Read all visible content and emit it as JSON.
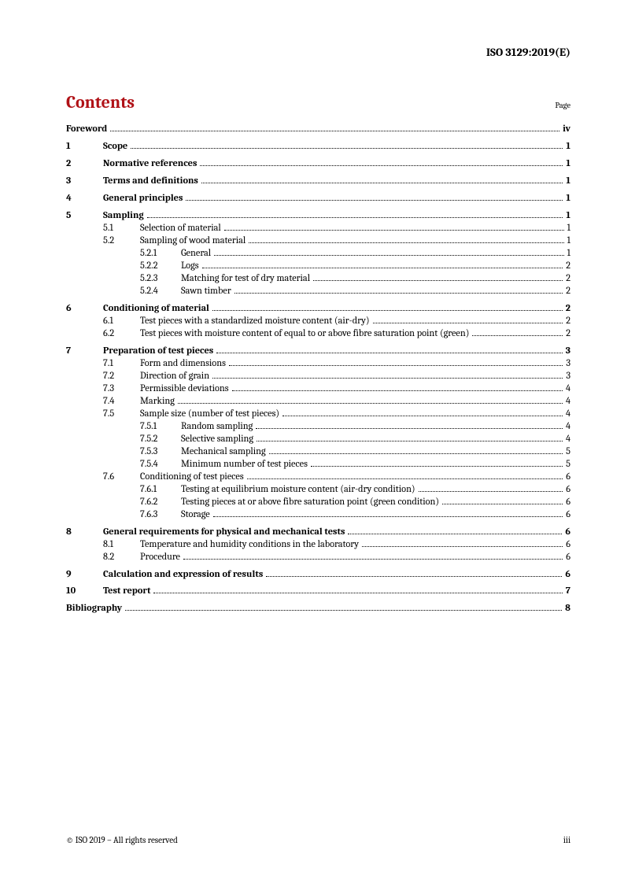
{
  "header": {
    "doc_id": "ISO 3129:2019(E)"
  },
  "contents": {
    "title": "Contents",
    "page_label": "Page"
  },
  "footer": {
    "copyright": "© ISO 2019 – All rights reserved",
    "page_number": "iii"
  },
  "toc": [
    {
      "level": 0,
      "num": "",
      "title": "Foreword",
      "page": "iv",
      "bold": true,
      "gap_after": true
    },
    {
      "level": 1,
      "num": "1",
      "title": "Scope",
      "page": "1",
      "bold": true,
      "gap_after": true
    },
    {
      "level": 1,
      "num": "2",
      "title": "Normative references",
      "page": "1",
      "bold": true,
      "gap_after": true
    },
    {
      "level": 1,
      "num": "3",
      "title": "Terms and definitions",
      "page": "1",
      "bold": true,
      "gap_after": true
    },
    {
      "level": 1,
      "num": "4",
      "title": "General principles",
      "page": "1",
      "bold": true,
      "gap_after": true
    },
    {
      "level": 1,
      "num": "5",
      "title": "Sampling",
      "page": "1",
      "bold": true
    },
    {
      "level": 2,
      "num": "5.1",
      "title": "Selection of material",
      "page": "1"
    },
    {
      "level": 2,
      "num": "5.2",
      "title": "Sampling of wood material",
      "page": "1"
    },
    {
      "level": 3,
      "num": "5.2.1",
      "title": "General",
      "page": "1"
    },
    {
      "level": 3,
      "num": "5.2.2",
      "title": "Logs",
      "page": "2"
    },
    {
      "level": 3,
      "num": "5.2.3",
      "title": "Matching for test of dry material",
      "page": "2"
    },
    {
      "level": 3,
      "num": "5.2.4",
      "title": "Sawn timber",
      "page": "2",
      "gap_after": true
    },
    {
      "level": 1,
      "num": "6",
      "title": "Conditioning of material",
      "page": "2",
      "bold": true
    },
    {
      "level": 2,
      "num": "6.1",
      "title": "Test pieces with a standardized moisture content (air-dry)",
      "page": "2"
    },
    {
      "level": 2,
      "num": "6.2",
      "title": "Test pieces with moisture content of equal to or above fibre saturation point (green)",
      "page": "2",
      "gap_after": true
    },
    {
      "level": 1,
      "num": "7",
      "title": "Preparation of test pieces",
      "page": "3",
      "bold": true
    },
    {
      "level": 2,
      "num": "7.1",
      "title": "Form and dimensions",
      "page": "3"
    },
    {
      "level": 2,
      "num": "7.2",
      "title": "Direction of grain",
      "page": "3"
    },
    {
      "level": 2,
      "num": "7.3",
      "title": "Permissible deviations",
      "page": "4"
    },
    {
      "level": 2,
      "num": "7.4",
      "title": "Marking",
      "page": "4"
    },
    {
      "level": 2,
      "num": "7.5",
      "title": "Sample size (number of test pieces)",
      "page": "4"
    },
    {
      "level": 3,
      "num": "7.5.1",
      "title": "Random sampling",
      "page": "4"
    },
    {
      "level": 3,
      "num": "7.5.2",
      "title": "Selective sampling",
      "page": "4"
    },
    {
      "level": 3,
      "num": "7.5.3",
      "title": "Mechanical sampling",
      "page": "5"
    },
    {
      "level": 3,
      "num": "7.5.4",
      "title": "Minimum number of test pieces",
      "page": "5"
    },
    {
      "level": 2,
      "num": "7.6",
      "title": "Conditioning of test pieces",
      "page": "6"
    },
    {
      "level": 3,
      "num": "7.6.1",
      "title": "Testing at equilibrium moisture content (air-dry condition)",
      "page": "6"
    },
    {
      "level": 3,
      "num": "7.6.2",
      "title": "Testing pieces at or above fibre saturation point (green condition)",
      "page": "6"
    },
    {
      "level": 3,
      "num": "7.6.3",
      "title": "Storage",
      "page": "6",
      "gap_after": true
    },
    {
      "level": 1,
      "num": "8",
      "title": "General requirements for physical and mechanical tests",
      "page": "6",
      "bold": true
    },
    {
      "level": 2,
      "num": "8.1",
      "title": "Temperature and humidity conditions in the laboratory",
      "page": "6"
    },
    {
      "level": 2,
      "num": "8.2",
      "title": "Procedure",
      "page": "6",
      "gap_after": true
    },
    {
      "level": 1,
      "num": "9",
      "title": "Calculation and expression of results",
      "page": "6",
      "bold": true,
      "gap_after": true
    },
    {
      "level": 1,
      "num": "10",
      "title": "Test report",
      "page": "7",
      "bold": true,
      "gap_after": true
    },
    {
      "level": 0,
      "num": "",
      "title": "Bibliography",
      "page": "8",
      "bold": true
    }
  ]
}
